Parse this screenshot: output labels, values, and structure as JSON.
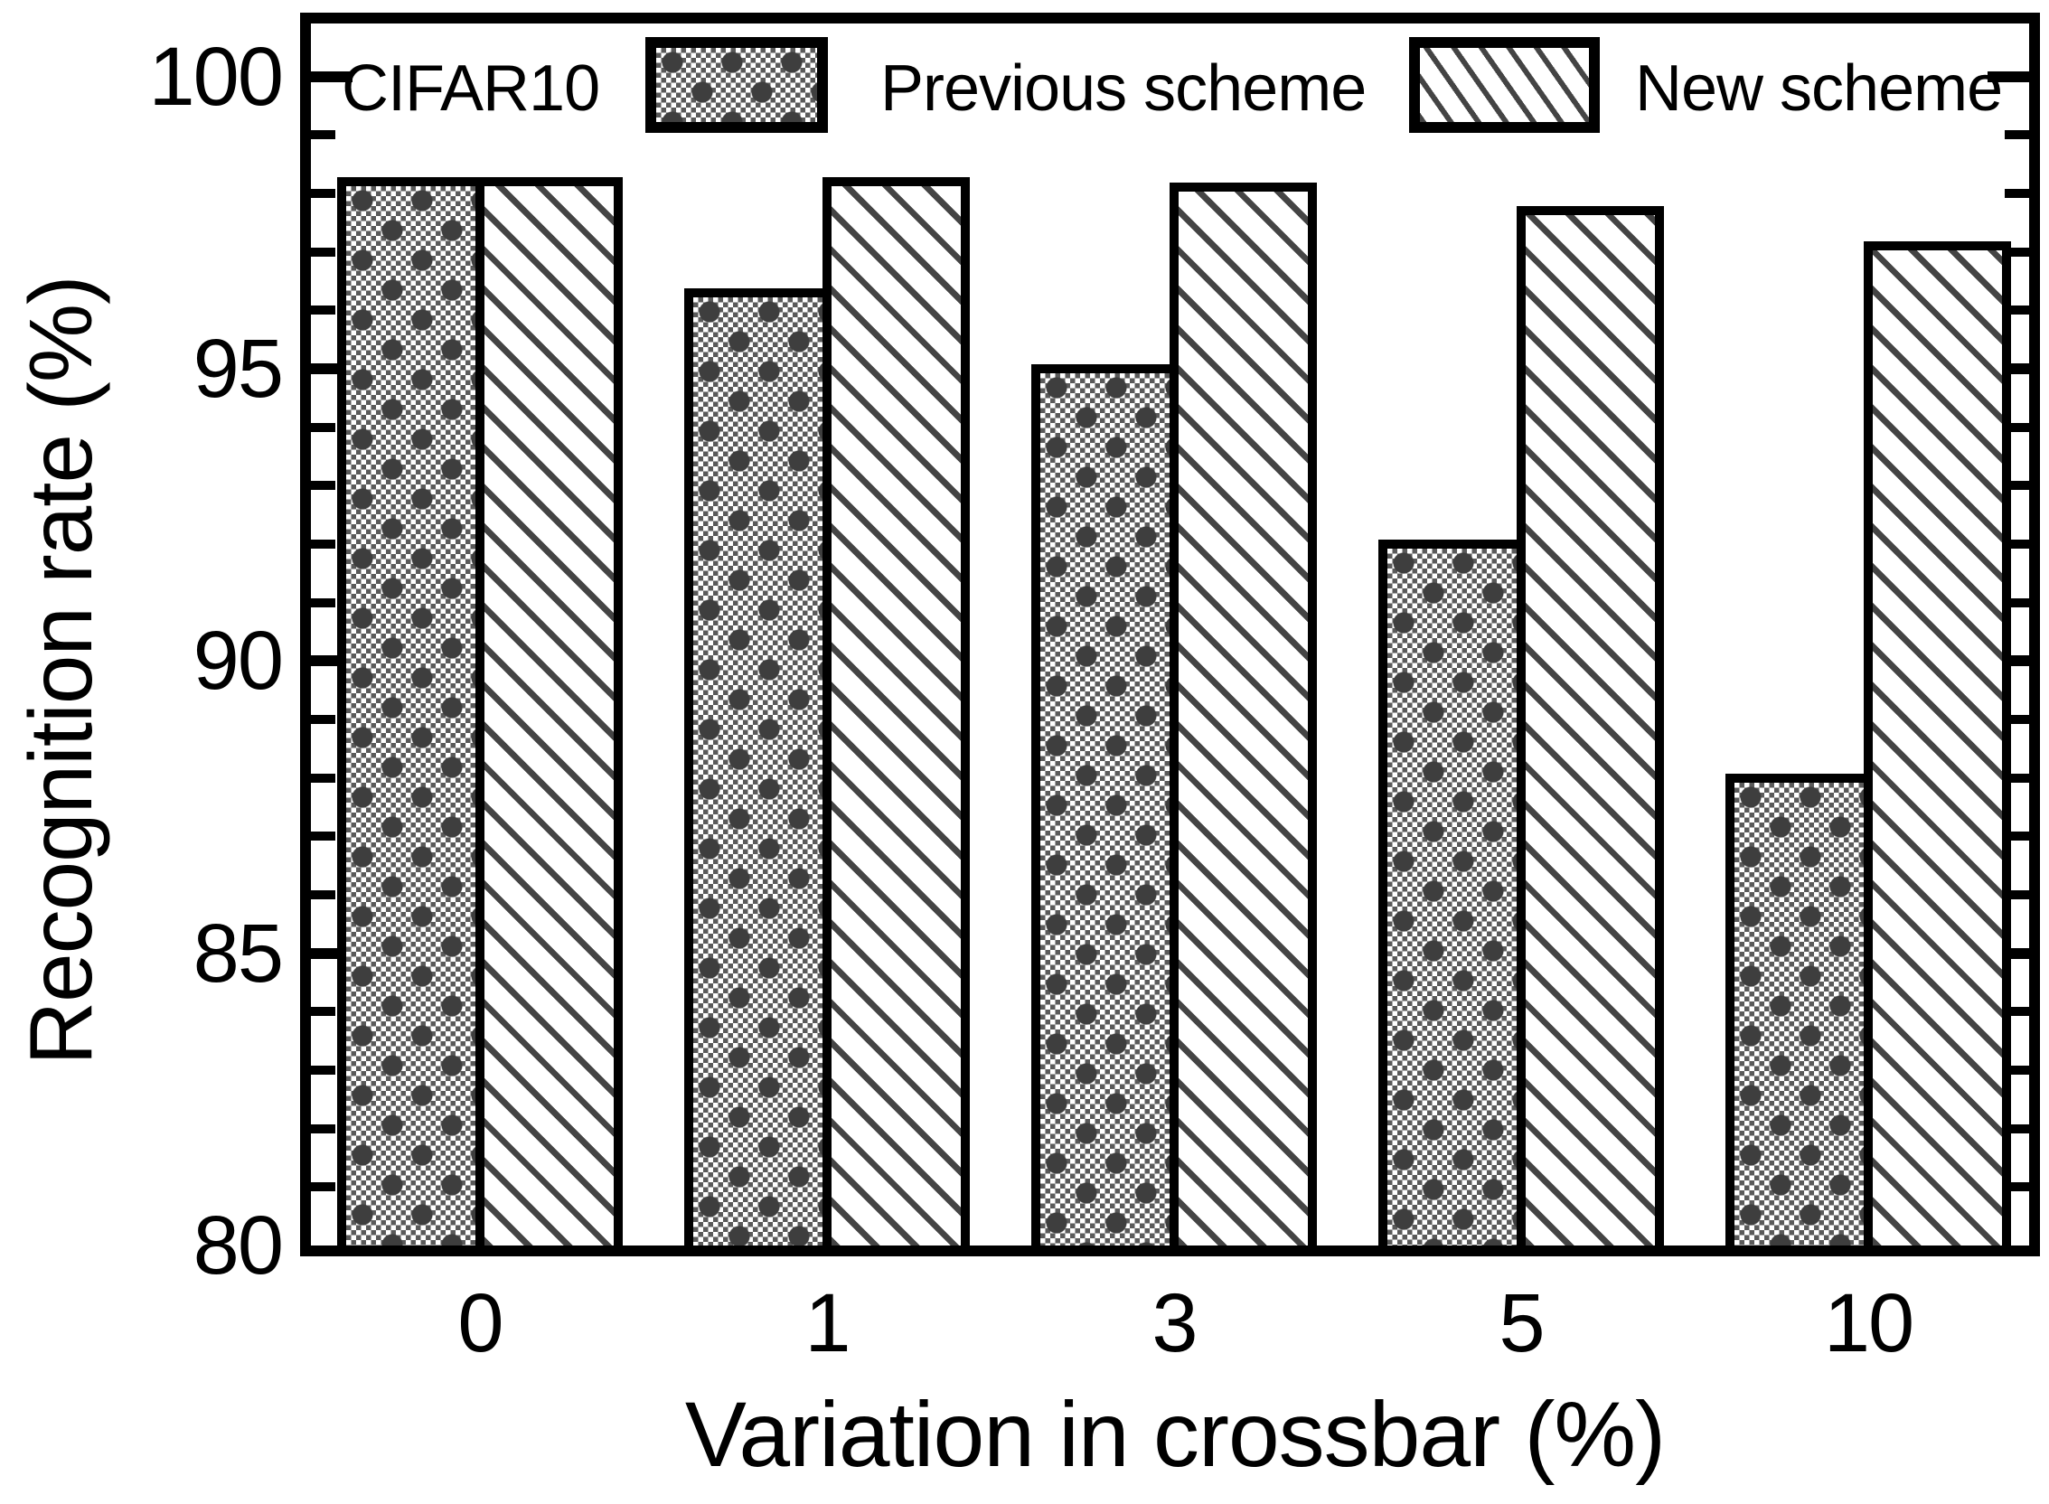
{
  "legend": {
    "dataset_label": "CIFAR10",
    "items": [
      {
        "label": "Previous scheme",
        "pattern": "checker-swatch"
      },
      {
        "label": "New scheme",
        "pattern": "hatch-swatch"
      }
    ]
  },
  "chart_data": {
    "type": "bar",
    "title": "",
    "annotation": "CIFAR10",
    "categories": [
      "0",
      "1",
      "3",
      "5",
      "10"
    ],
    "series": [
      {
        "name": "Previous scheme",
        "pattern": "checker",
        "values": [
          98.2,
          96.3,
          95.0,
          92.0,
          88.0
        ]
      },
      {
        "name": "New scheme",
        "pattern": "hatch",
        "values": [
          98.2,
          98.2,
          98.1,
          97.7,
          97.1
        ]
      }
    ],
    "xlabel": "Variation in crossbar (%)",
    "ylabel": "Recognition rate (%)",
    "ylim": [
      80,
      100.9
    ],
    "yticks": [
      80,
      85,
      90,
      95,
      100
    ],
    "ytick_labels": [
      "80",
      "85",
      "90",
      "95",
      "100"
    ],
    "minor_tick_step": 1,
    "grid": false,
    "legend_position": "top-inside",
    "colors": {
      "foreground": "#000000",
      "background": "#ffffff",
      "pattern_ink": "#444444"
    }
  }
}
